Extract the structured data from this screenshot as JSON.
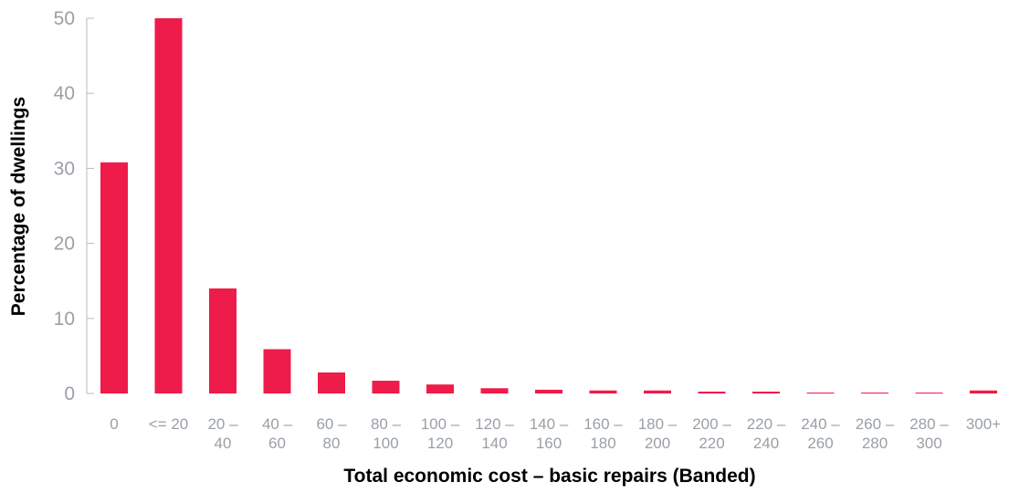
{
  "chart_data": {
    "type": "bar",
    "xlabel": "Total economic cost – basic repairs (Banded)",
    "ylabel": "Percentage of dwellings",
    "ylim": [
      0,
      50
    ],
    "yticks": [
      "0",
      "10",
      "20",
      "30",
      "40",
      "50"
    ],
    "grid": false,
    "legend": "none",
    "categories": [
      {
        "lines": [
          "0"
        ]
      },
      {
        "lines": [
          "<= 20"
        ]
      },
      {
        "lines": [
          "20 –",
          "40"
        ]
      },
      {
        "lines": [
          "40 –",
          "60"
        ]
      },
      {
        "lines": [
          "60 –",
          "80"
        ]
      },
      {
        "lines": [
          "80 –",
          "100"
        ]
      },
      {
        "lines": [
          "100 –",
          "120"
        ]
      },
      {
        "lines": [
          "120 –",
          "140"
        ]
      },
      {
        "lines": [
          "140 –",
          "160"
        ]
      },
      {
        "lines": [
          "160 –",
          "180"
        ]
      },
      {
        "lines": [
          "180 –",
          "200"
        ]
      },
      {
        "lines": [
          "200 –",
          "220"
        ]
      },
      {
        "lines": [
          "220 –",
          "240"
        ]
      },
      {
        "lines": [
          "240 –",
          "260"
        ]
      },
      {
        "lines": [
          "260 –",
          "280"
        ]
      },
      {
        "lines": [
          "280 –",
          "300"
        ]
      },
      {
        "lines": [
          "300+"
        ]
      }
    ],
    "values": [
      30.8,
      50.0,
      14.0,
      5.9,
      2.8,
      1.7,
      1.2,
      0.7,
      0.5,
      0.4,
      0.4,
      0.25,
      0.25,
      0.12,
      0.12,
      0.12,
      0.4
    ],
    "colors": {
      "bar": "#ee1c4a",
      "axis": "#b5bbc0",
      "tick_text": "#9aa0a6"
    }
  }
}
